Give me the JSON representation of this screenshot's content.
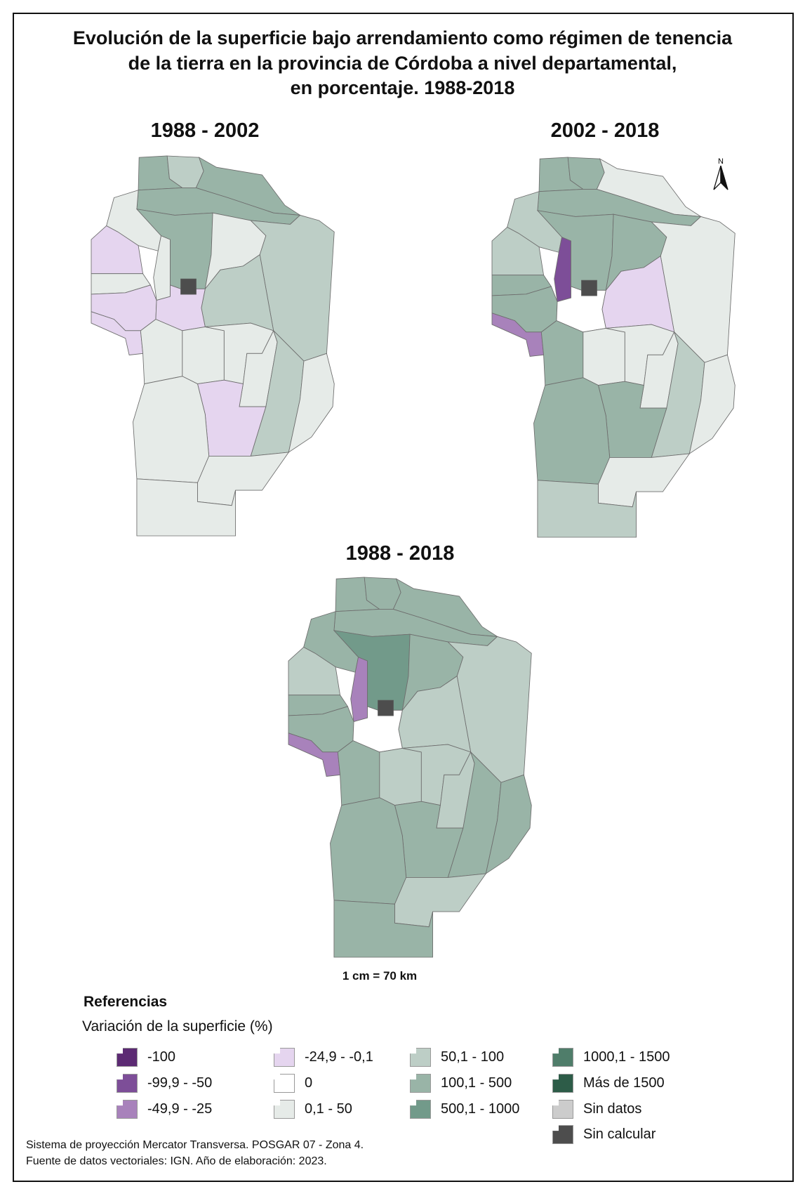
{
  "title": [
    "Evolución de la superficie bajo arrendamiento como régimen de tenencia",
    "de la tierra en la provincia de Córdoba a nivel departamental,",
    "en porcentaje. 1988-2018"
  ],
  "maps": [
    {
      "title": "1988 - 2002",
      "classes": [
        "c3",
        "c2",
        "c3",
        "c3",
        "c1",
        "p1",
        "c1",
        "c3",
        "c1",
        "c2",
        "c2",
        "k",
        "c1",
        "p1",
        "p1",
        "p1",
        "c1",
        "c1",
        "c1",
        "c1",
        "c2",
        "c1",
        "p1",
        "c1",
        "c1",
        "c1"
      ]
    },
    {
      "title": "2002 - 2018",
      "classes": [
        "c3",
        "c3",
        "c1",
        "c3",
        "c2",
        "c2",
        "p3",
        "c3",
        "c3",
        "c1",
        "p1",
        "k",
        "c3",
        "c3",
        "p2",
        "w",
        "c3",
        "c1",
        "c1",
        "c1",
        "c2",
        "c1",
        "c3",
        "c3",
        "c1",
        "c2"
      ]
    },
    {
      "title": "1988 - 2018",
      "classes": [
        "c3",
        "c3",
        "c3",
        "c3",
        "c3",
        "c2",
        "p2",
        "c4",
        "c3",
        "c2",
        "c2",
        "k",
        "c3",
        "c3",
        "p2",
        "w",
        "c3",
        "c2",
        "c2",
        "c2",
        "c3",
        "c3",
        "c3",
        "c3",
        "c2",
        "c3"
      ]
    }
  ],
  "north_label": "N",
  "scale": "1 cm = 70 km",
  "legend": {
    "heading": "Referencias",
    "subtitle": "Variación de la superficie  (%)",
    "items": [
      {
        "key": "p4",
        "label": "-100",
        "color": "#5c2a73"
      },
      {
        "key": "p3",
        "label": "-99,9 - -50",
        "color": "#7d4e98"
      },
      {
        "key": "p2",
        "label": "-49,9 - -25",
        "color": "#a882bb"
      },
      {
        "key": "p1",
        "label": "-24,9 - -0,1",
        "color": "#e5d5ef"
      },
      {
        "key": "w",
        "label": "0",
        "color": "#ffffff"
      },
      {
        "key": "c1",
        "label": "0,1 - 50",
        "color": "#e6ebe8"
      },
      {
        "key": "c2",
        "label": "50,1 - 100",
        "color": "#bdcec6"
      },
      {
        "key": "c3",
        "label": "100,1 - 500",
        "color": "#99b4a7"
      },
      {
        "key": "c4",
        "label": "500,1 - 1000",
        "color": "#729a8a"
      },
      {
        "key": "c5",
        "label": "1000,1 - 1500",
        "color": "#4f7d6a"
      },
      {
        "key": "c6",
        "label": "Más de 1500",
        "color": "#2d5c48"
      },
      {
        "key": "nd",
        "label": "Sin datos",
        "color": "#cccccc"
      },
      {
        "key": "k",
        "label": "Sin calcular",
        "color": "#4d4d4d"
      }
    ]
  },
  "footer": [
    "Sistema de proyección Mercator Transversa. POSGAR 07 - Zona 4.",
    "Fuente de datos vectoriales: IGN. Año de elaboración: 2023."
  ]
}
